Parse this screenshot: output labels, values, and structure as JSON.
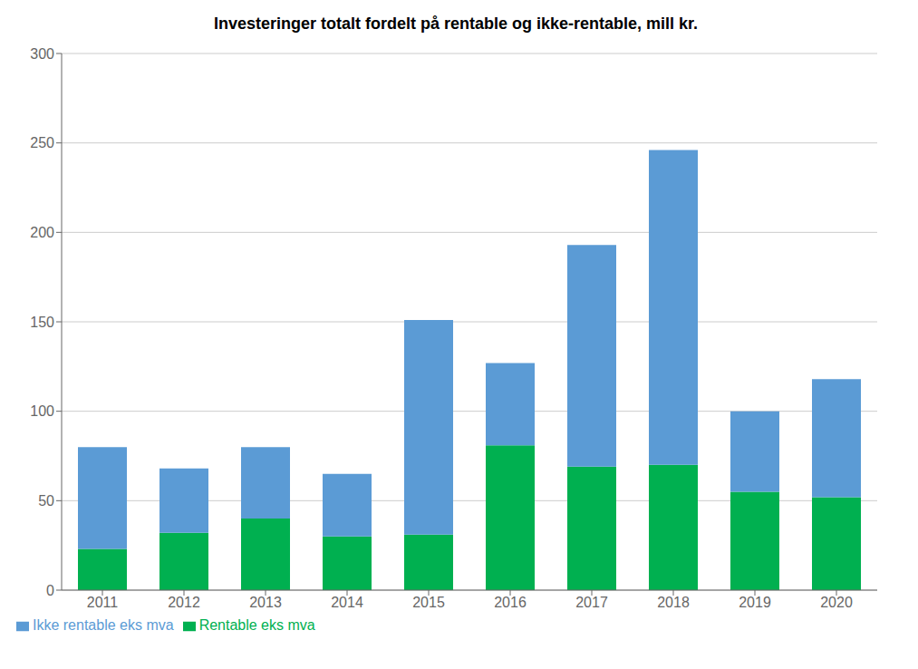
{
  "chart_data": {
    "type": "bar",
    "title": "Investeringer totalt fordelt på rentable og ikke-rentable, mill kr.",
    "categories": [
      "2011",
      "2012",
      "2013",
      "2014",
      "2015",
      "2016",
      "2017",
      "2018",
      "2019",
      "2020"
    ],
    "series": [
      {
        "name": "Rentable eks mva",
        "color": "#00B050",
        "values": [
          23,
          32,
          40,
          30,
          31,
          81,
          69,
          70,
          55,
          52
        ]
      },
      {
        "name": "Ikke rentable eks mva",
        "color": "#5B9BD5",
        "values": [
          57,
          36,
          40,
          35,
          120,
          46,
          124,
          176,
          45,
          66
        ]
      }
    ],
    "ylim": [
      0,
      300
    ],
    "yticks": [
      0,
      50,
      100,
      150,
      200,
      250,
      300
    ],
    "stacked": true,
    "grid": true,
    "legend": "bottom"
  }
}
